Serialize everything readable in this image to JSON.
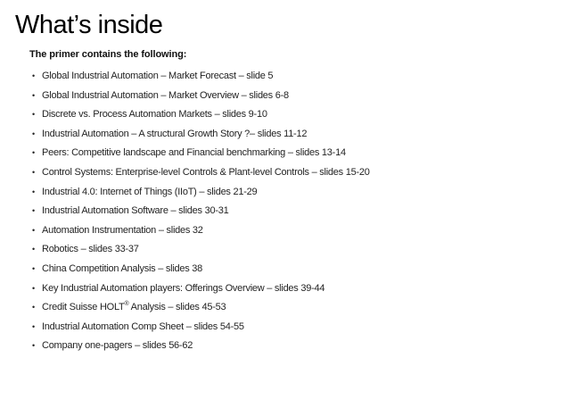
{
  "slide": {
    "title": "What’s inside",
    "intro": "The primer contains the following:",
    "bullet_glyph": "•",
    "items": [
      "Global Industrial Automation – Market Forecast – slide 5",
      "Global Industrial Automation – Market Overview – slides 6-8",
      "Discrete vs. Process Automation Markets – slides 9-10",
      "Industrial Automation – A structural Growth Story ?– slides 11-12",
      "Peers: Competitive landscape and Financial benchmarking – slides 13-14",
      "Control Systems: Enterprise-level Controls & Plant-level Controls – slides 15-20",
      "Industrial 4.0: Internet of Things (IIoT) – slides 21-29",
      "Industrial Automation Software – slides 30-31",
      "Automation Instrumentation – slides 32",
      "Robotics – slides 33-37",
      "China Competition Analysis – slides 38",
      "Key Industrial Automation players: Offerings Overview – slides 39-44",
      "Credit Suisse HOLT® Analysis – slides 45-53",
      "Industrial Automation Comp Sheet – slides 54-55",
      "Company one-pagers – slides 56-62"
    ]
  }
}
